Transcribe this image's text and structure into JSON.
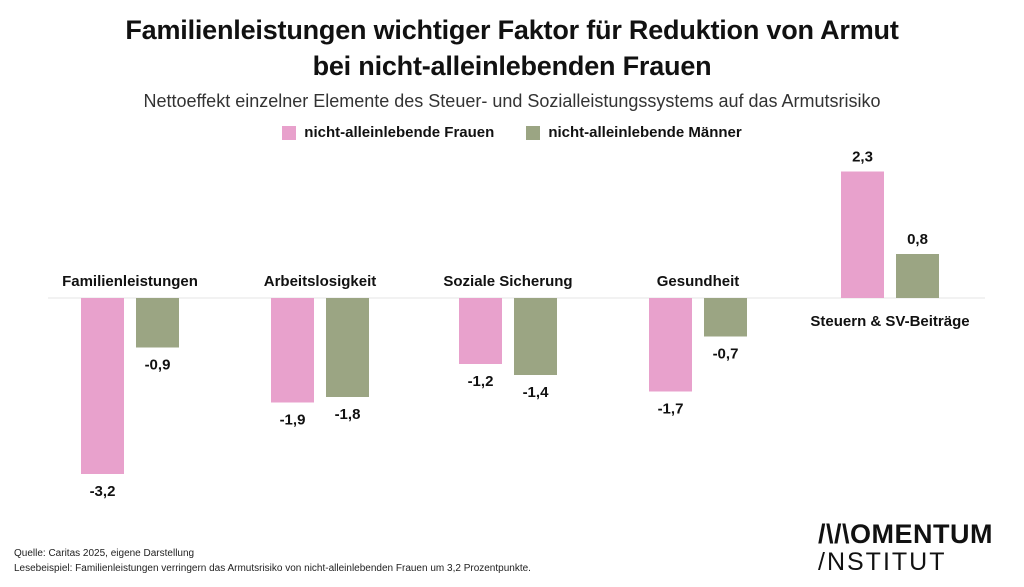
{
  "chart_data": {
    "type": "bar",
    "title": [
      "Familienleistungen wichtiger Faktor für Reduktion von Armut",
      "bei nicht-alleinlebenden Frauen"
    ],
    "subtitle": "Nettoeffekt einzelner Elemente des Steuer- und Sozialleistungssystems auf das Armutsrisiko",
    "categories": [
      "Familienleistungen",
      "Arbeitslosigkeit",
      "Soziale Sicherung",
      "Gesundheit",
      "Steuern & SV-Beiträge"
    ],
    "series": [
      {
        "name": "nicht-alleinlebende Frauen",
        "color": "#e8a1cc",
        "values": [
          -3.2,
          -1.9,
          -1.2,
          -1.7,
          2.3
        ],
        "labels": [
          "-3,2",
          "-1,9",
          "-1,2",
          "-1,7",
          "2,3"
        ]
      },
      {
        "name": "nicht-alleinlebende Männer",
        "color": "#9ba583",
        "values": [
          -0.9,
          -1.8,
          -1.4,
          -0.7,
          0.8
        ],
        "labels": [
          "-0,9",
          "-1,8",
          "-1,4",
          "-0,7",
          "0,8"
        ]
      }
    ],
    "xlabel": "",
    "ylabel": "",
    "ylim": [
      -3.2,
      2.3
    ],
    "grid": false,
    "legend": "top-center"
  },
  "footer": {
    "source": "Quelle: Caritas 2025, eigene Darstellung",
    "reading_example": "Lesebeispiel: Familienleistungen verringern das Armutsrisiko von nicht-alleinlebenden Frauen um 3,2 Prozentpunkte."
  },
  "logo": {
    "line1": "/\\/\\OMENTUM",
    "line2": "/NSTITUT"
  }
}
